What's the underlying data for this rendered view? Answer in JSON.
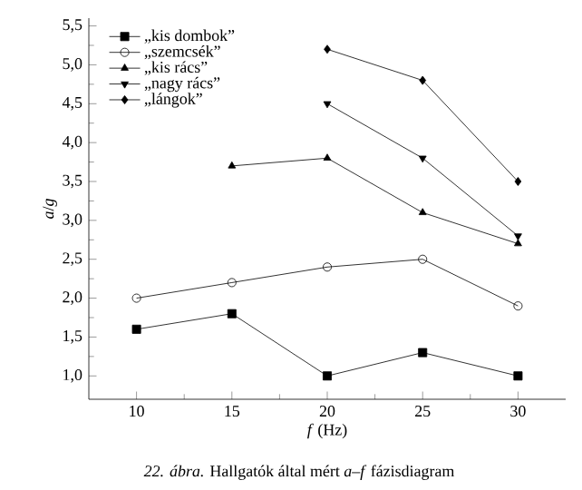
{
  "chart_data": {
    "type": "line",
    "xlabel": "*f* (Hz)",
    "ylabel": "*a*/*g*",
    "annotations": [
      "*22. ábra.* Hallgatók által mért *a*–*f* fázisdiagram"
    ],
    "xlim": [
      7.5,
      32.5
    ],
    "xticks": [
      10,
      15,
      20,
      25,
      30
    ],
    "ylim": [
      0.7,
      5.6
    ],
    "yticks": [
      {
        "value": 1.0,
        "label": "1,0"
      },
      {
        "value": 1.5,
        "label": "1,5"
      },
      {
        "value": 2.0,
        "label": "2,0"
      },
      {
        "value": 2.5,
        "label": "2,5"
      },
      {
        "value": 3.0,
        "label": "3,0"
      },
      {
        "value": 3.5,
        "label": "3,5"
      },
      {
        "value": 4.0,
        "label": "4,0"
      },
      {
        "value": 4.5,
        "label": "4,5"
      },
      {
        "value": 5.0,
        "label": "5,0"
      },
      {
        "value": 5.5,
        "label": "5,5"
      }
    ],
    "legend": "top left",
    "grid": false,
    "line_style": "solid",
    "series": [
      {
        "name": "„kis dombok”",
        "color": "#000000",
        "marker": "square",
        "x": [
          10,
          15,
          20,
          25,
          30
        ],
        "values": [
          1.6,
          1.8,
          1.0,
          1.3,
          1.0
        ]
      },
      {
        "name": "„szemcsék”",
        "color": "#000000",
        "marker": "circle",
        "x": [
          10,
          15,
          20,
          25,
          30
        ],
        "values": [
          2.0,
          2.2,
          2.4,
          2.5,
          1.9
        ]
      },
      {
        "name": "„kis rács”",
        "color": "#000000",
        "marker": "triangle",
        "x": [
          15,
          20,
          25,
          30
        ],
        "values": [
          3.7,
          3.8,
          3.1,
          2.7
        ]
      },
      {
        "name": "„nagy rács”",
        "color": "#000000",
        "marker": "triangle-down",
        "x": [
          20,
          25,
          30
        ],
        "values": [
          4.5,
          3.8,
          2.8
        ]
      },
      {
        "name": "„lángok”",
        "color": "#000000",
        "marker": "diamond",
        "x": [
          20,
          25,
          30
        ],
        "values": [
          5.2,
          4.8,
          3.5
        ]
      }
    ]
  }
}
